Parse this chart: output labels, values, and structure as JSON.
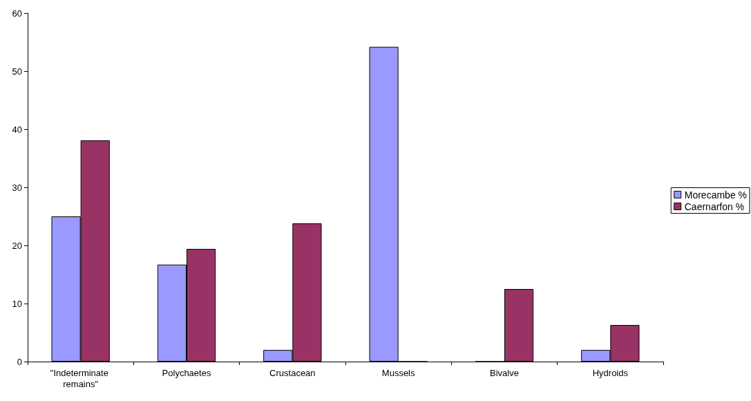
{
  "chart_data": {
    "type": "bar",
    "categories": [
      "\"Indeterminate remains\"",
      "Polychaetes",
      "Crustacean",
      "Mussels",
      "Bivalve",
      "Hydroids"
    ],
    "series": [
      {
        "name": "Morecambe %",
        "color": "#9999ff",
        "values": [
          25,
          16.7,
          2,
          54.2,
          0,
          2
        ]
      },
      {
        "name": "Caernarfon %",
        "color": "#993366",
        "values": [
          38.1,
          19.4,
          23.8,
          0,
          12.5,
          6.3
        ]
      }
    ],
    "ylim": [
      0,
      60
    ],
    "yticks": [
      0,
      10,
      20,
      30,
      40,
      50,
      60
    ],
    "grid": false,
    "legend": "right"
  }
}
